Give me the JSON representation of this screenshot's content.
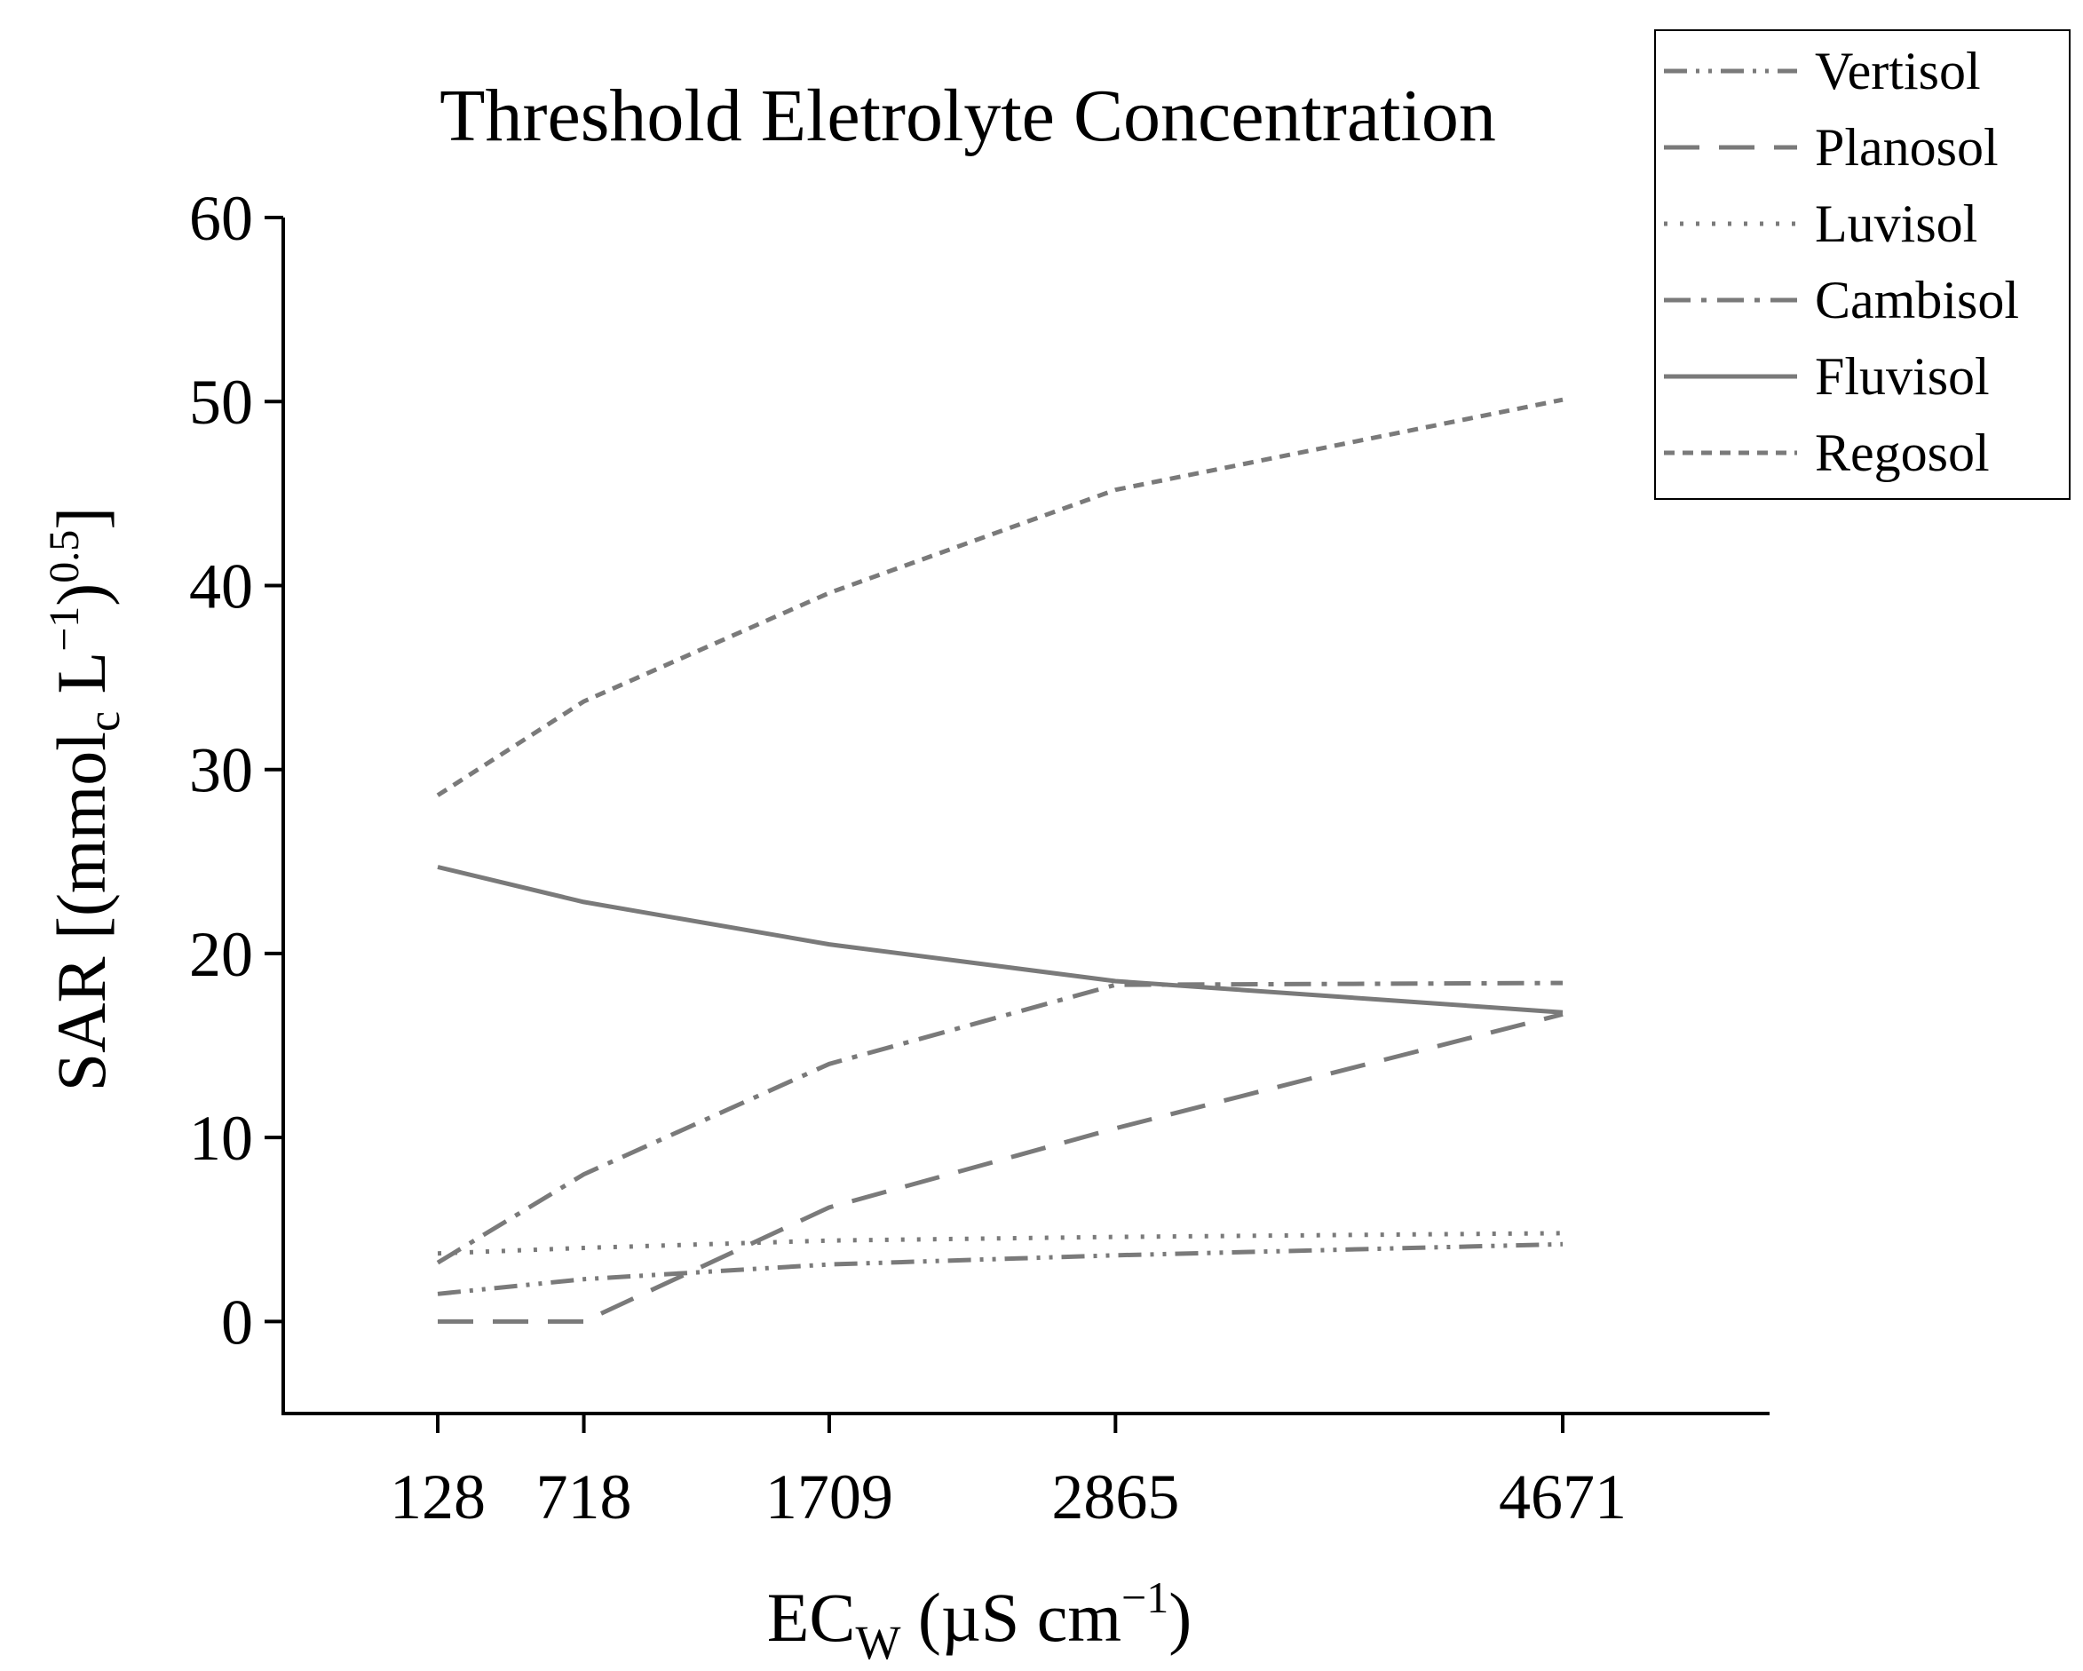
{
  "chart_data": {
    "type": "line",
    "title": "Threshold Eletrolyte Concentration",
    "xlabel": {
      "main": "EC",
      "sub": "W",
      "units": " (µS cm",
      "sup": "−1",
      "close": ")"
    },
    "ylabel": {
      "main": "SAR [(mmol",
      "sub": "c",
      "mid": " L",
      "sup1": "−1",
      "mid2": ")",
      "sup2": "0.5",
      "close": "]"
    },
    "x": [
      128,
      718,
      1709,
      2865,
      4671
    ],
    "x_tick_labels": [
      "128",
      "718",
      "1709",
      "2865",
      "4671"
    ],
    "ylim": [
      -5,
      60
    ],
    "y_ticks": [
      0,
      10,
      20,
      30,
      40,
      50,
      60
    ],
    "y_tick_labels": [
      "0",
      "10",
      "20",
      "30",
      "40",
      "50",
      "60"
    ],
    "series": [
      {
        "name": "Vertisol",
        "style": "dashdotdot",
        "values": [
          1.5,
          2.3,
          3.1,
          3.6,
          4.2
        ]
      },
      {
        "name": "Planosol",
        "style": "longdash",
        "values": [
          0.0,
          0.0,
          6.2,
          10.5,
          16.7
        ]
      },
      {
        "name": "Luvisol",
        "style": "dotted",
        "values": [
          3.7,
          4.0,
          4.4,
          4.6,
          4.8
        ]
      },
      {
        "name": "Cambisol",
        "style": "dashdot",
        "values": [
          3.2,
          8.0,
          14.0,
          18.3,
          18.4
        ]
      },
      {
        "name": "Fluvisol",
        "style": "solid",
        "values": [
          24.7,
          22.8,
          20.5,
          18.5,
          16.8
        ]
      },
      {
        "name": "Regosol",
        "style": "shortdash",
        "values": [
          28.6,
          33.7,
          39.6,
          45.2,
          50.1
        ]
      }
    ],
    "legend_position": "top-right",
    "line_color": "#7a7a7a",
    "axis_color": "#000000"
  }
}
